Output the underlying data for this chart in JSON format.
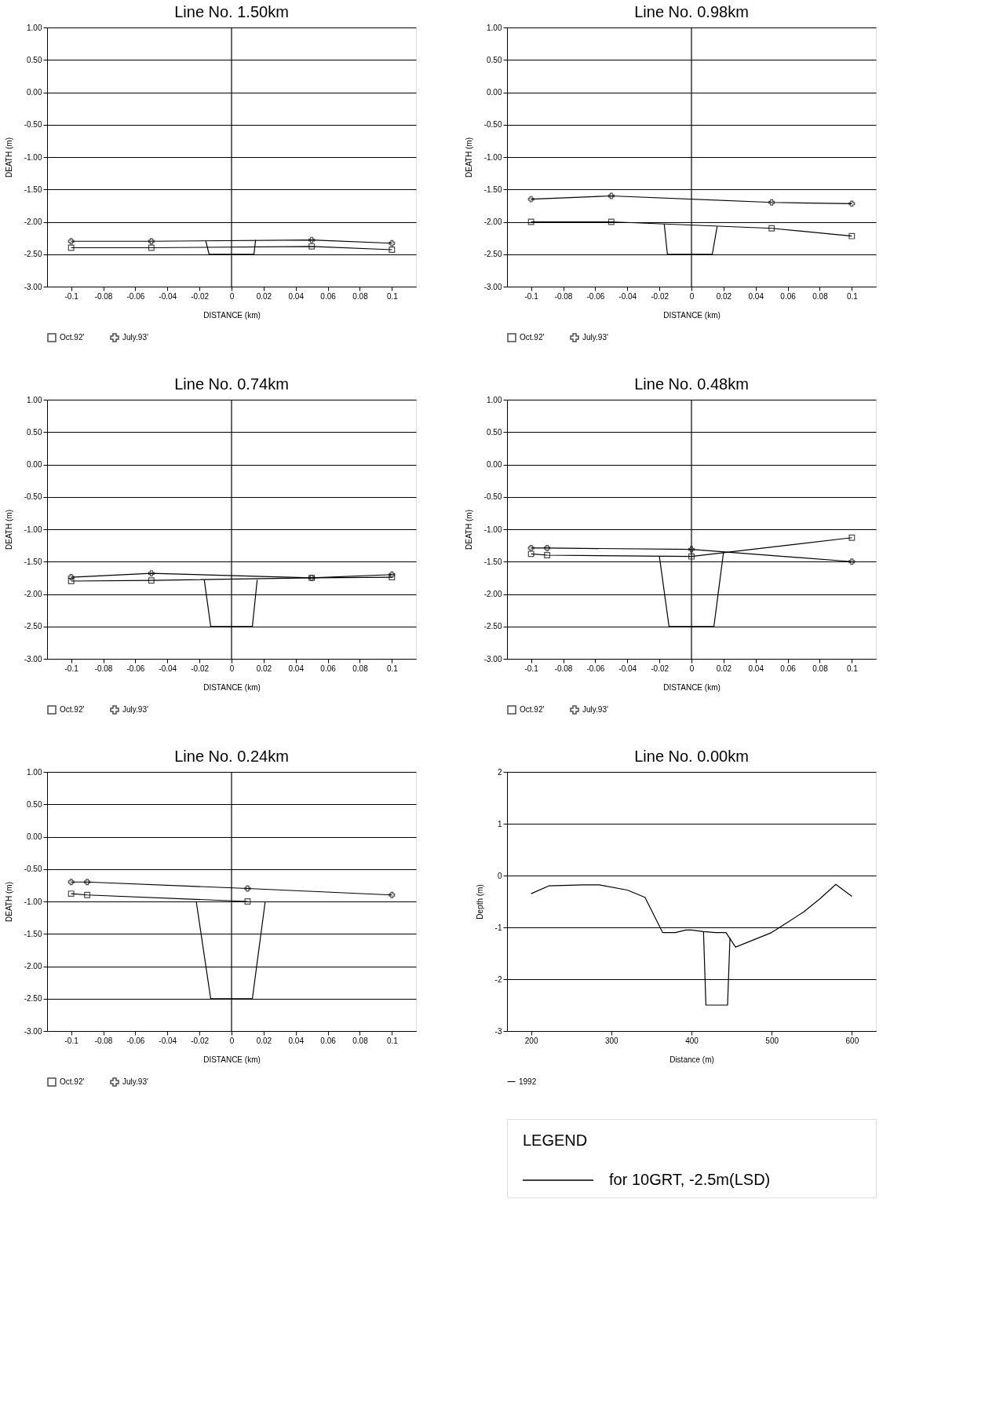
{
  "chart_data": [
    {
      "type": "line",
      "title": "Line No. 1.50km",
      "xlabel": "DISTANCE (km)",
      "ylabel": "DEATH (m)",
      "xlim": [
        -0.115,
        0.115
      ],
      "ylim": [
        -3,
        1
      ],
      "xticks": [
        -0.1,
        -0.08,
        -0.06,
        -0.04,
        -0.02,
        0,
        0.02,
        0.04,
        0.06,
        0.08,
        0.1
      ],
      "yticks": [
        {
          "value": 1,
          "label": "1.00"
        },
        {
          "value": 0.5,
          "label": "0.50"
        },
        {
          "value": 0,
          "label": "0.00"
        },
        {
          "value": -0.5,
          "label": "-0.50"
        },
        {
          "value": -1,
          "label": "-1.00"
        },
        {
          "value": -1.5,
          "label": "-1.50"
        },
        {
          "value": -2,
          "label": "-2.00"
        },
        {
          "value": -2.5,
          "label": "-2.50"
        },
        {
          "value": -3,
          "label": "-3.00"
        }
      ],
      "grid": "y",
      "legend": "bottom",
      "ref_lines": [
        {
          "axis": "x",
          "value": 0,
          "color": "#000000"
        }
      ],
      "series": [
        {
          "name": "Oct.92'",
          "color": "#000000",
          "marker": "square",
          "x": [
            -0.1,
            -0.05,
            0.05,
            0.1
          ],
          "values": [
            -2.4,
            -2.4,
            -2.38,
            -2.43
          ]
        },
        {
          "name": "July.93'",
          "color": "#000000",
          "marker": "cross",
          "x": [
            -0.1,
            -0.05,
            0.05,
            0.1
          ],
          "values": [
            -2.3,
            -2.3,
            -2.28,
            -2.33
          ]
        },
        {
          "color": "#000000",
          "marker": "none",
          "x": [
            -0.016,
            -0.014,
            0.014,
            0.015
          ],
          "values": [
            -2.3,
            -2.5,
            -2.5,
            -2.28
          ]
        }
      ]
    },
    {
      "type": "line",
      "title": "Line No. 0.98km",
      "xlabel": "DISTANCE (km)",
      "ylabel": "DEATH (m)",
      "xlim": [
        -0.115,
        0.115
      ],
      "ylim": [
        -3,
        1
      ],
      "xticks": [
        -0.1,
        -0.08,
        -0.06,
        -0.04,
        -0.02,
        0,
        0.02,
        0.04,
        0.06,
        0.08,
        0.1
      ],
      "yticks": [
        {
          "value": 1,
          "label": "1.00"
        },
        {
          "value": 0.5,
          "label": "0.50"
        },
        {
          "value": 0,
          "label": "0.00"
        },
        {
          "value": -0.5,
          "label": "-0.50"
        },
        {
          "value": -1,
          "label": "-1.00"
        },
        {
          "value": -1.5,
          "label": "-1.50"
        },
        {
          "value": -2,
          "label": "-2.00"
        },
        {
          "value": -2.5,
          "label": "-2.50"
        },
        {
          "value": -3,
          "label": "-3.00"
        }
      ],
      "grid": "y",
      "legend": "bottom",
      "ref_lines": [
        {
          "axis": "x",
          "value": 0,
          "color": "#000000"
        }
      ],
      "series": [
        {
          "name": "Oct.92'",
          "color": "#000000",
          "marker": "square",
          "x": [
            -0.1,
            -0.05,
            0.05,
            0.1
          ],
          "values": [
            -2.0,
            -2.0,
            -2.1,
            -2.22
          ]
        },
        {
          "name": "July.93'",
          "color": "#000000",
          "marker": "cross",
          "x": [
            -0.1,
            -0.05,
            0.05,
            0.1
          ],
          "values": [
            -1.65,
            -1.6,
            -1.7,
            -1.72
          ]
        },
        {
          "color": "#000000",
          "marker": "none",
          "x": [
            -0.017,
            -0.015,
            0.013,
            0.016
          ],
          "values": [
            -2.03,
            -2.5,
            -2.5,
            -2.07
          ]
        }
      ]
    },
    {
      "type": "line",
      "title": "Line No. 0.74km",
      "xlabel": "DISTANCE (km)",
      "ylabel": "DEATH (m)",
      "xlim": [
        -0.115,
        0.115
      ],
      "ylim": [
        -3,
        1
      ],
      "xticks": [
        -0.1,
        -0.08,
        -0.06,
        -0.04,
        -0.02,
        0,
        0.02,
        0.04,
        0.06,
        0.08,
        0.1
      ],
      "yticks": [
        {
          "value": 1,
          "label": "1.00"
        },
        {
          "value": 0.5,
          "label": "0.50"
        },
        {
          "value": 0,
          "label": "0.00"
        },
        {
          "value": -0.5,
          "label": "-0.50"
        },
        {
          "value": -1,
          "label": "-1.00"
        },
        {
          "value": -1.5,
          "label": "-1.50"
        },
        {
          "value": -2,
          "label": "-2.00"
        },
        {
          "value": -2.5,
          "label": "-2.50"
        },
        {
          "value": -3,
          "label": "-3.00"
        }
      ],
      "grid": "y",
      "legend": "bottom",
      "ref_lines": [
        {
          "axis": "x",
          "value": 0,
          "color": "#000000"
        }
      ],
      "series": [
        {
          "name": "Oct.92'",
          "color": "#000000",
          "marker": "square",
          "x": [
            -0.1,
            -0.05,
            0.05,
            0.1
          ],
          "values": [
            -1.8,
            -1.79,
            -1.75,
            -1.74
          ]
        },
        {
          "name": "July.93'",
          "color": "#000000",
          "marker": "cross",
          "x": [
            -0.1,
            -0.05,
            0.05,
            0.1
          ],
          "values": [
            -1.74,
            -1.68,
            -1.75,
            -1.7
          ]
        },
        {
          "color": "#000000",
          "marker": "none",
          "x": [
            -0.017,
            -0.013,
            0.013,
            0.016
          ],
          "values": [
            -1.78,
            -2.5,
            -2.5,
            -1.78
          ]
        }
      ]
    },
    {
      "type": "line",
      "title": "Line No. 0.48km",
      "xlabel": "DISTANCE (km)",
      "ylabel": "DEATH (m)",
      "xlim": [
        -0.115,
        0.115
      ],
      "ylim": [
        -3,
        1
      ],
      "xticks": [
        -0.1,
        -0.08,
        -0.06,
        -0.04,
        -0.02,
        0,
        0.02,
        0.04,
        0.06,
        0.08,
        0.1
      ],
      "yticks": [
        {
          "value": 1,
          "label": "1.00"
        },
        {
          "value": 0.5,
          "label": "0.50"
        },
        {
          "value": 0,
          "label": "0.00"
        },
        {
          "value": -0.5,
          "label": "-0.50"
        },
        {
          "value": -1,
          "label": "-1.00"
        },
        {
          "value": -1.5,
          "label": "-1.50"
        },
        {
          "value": -2,
          "label": "-2.00"
        },
        {
          "value": -2.5,
          "label": "-2.50"
        },
        {
          "value": -3,
          "label": "-3.00"
        }
      ],
      "grid": "y",
      "legend": "bottom",
      "ref_lines": [
        {
          "axis": "x",
          "value": 0,
          "color": "#000000"
        }
      ],
      "series": [
        {
          "name": "Oct.92'",
          "color": "#000000",
          "marker": "square",
          "x": [
            -0.1,
            -0.09,
            0,
            0.1
          ],
          "values": [
            -1.38,
            -1.4,
            -1.42,
            -1.13
          ]
        },
        {
          "name": "July.93'",
          "color": "#000000",
          "marker": "cross",
          "x": [
            -0.1,
            -0.09,
            0,
            0.1
          ],
          "values": [
            -1.29,
            -1.29,
            -1.31,
            -1.5
          ]
        },
        {
          "color": "#000000",
          "marker": "none",
          "x": [
            -0.02,
            -0.014,
            0.014,
            0.02
          ],
          "values": [
            -1.42,
            -2.5,
            -2.5,
            -1.35
          ]
        }
      ]
    },
    {
      "type": "line",
      "title": "Line No. 0.24km",
      "xlabel": "DISTANCE (km)",
      "ylabel": "DEATH (m)",
      "xlim": [
        -0.115,
        0.115
      ],
      "ylim": [
        -3,
        1
      ],
      "xticks": [
        -0.1,
        -0.08,
        -0.06,
        -0.04,
        -0.02,
        0,
        0.02,
        0.04,
        0.06,
        0.08,
        0.1
      ],
      "yticks": [
        {
          "value": 1,
          "label": "1.00"
        },
        {
          "value": 0.5,
          "label": "0.50"
        },
        {
          "value": 0,
          "label": "0.00"
        },
        {
          "value": -0.5,
          "label": "-0.50"
        },
        {
          "value": -1,
          "label": "-1.00"
        },
        {
          "value": -1.5,
          "label": "-1.50"
        },
        {
          "value": -2,
          "label": "-2.00"
        },
        {
          "value": -2.5,
          "label": "-2.50"
        },
        {
          "value": -3,
          "label": "-3.00"
        }
      ],
      "grid": "y",
      "legend": "bottom",
      "ref_lines": [
        {
          "axis": "x",
          "value": 0,
          "color": "#000000"
        }
      ],
      "series": [
        {
          "name": "Oct.92'",
          "color": "#000000",
          "marker": "square",
          "x": [
            -0.1,
            -0.09,
            0.01
          ],
          "values": [
            -0.88,
            -0.9,
            -1.0
          ]
        },
        {
          "name": "July.93'",
          "color": "#000000",
          "marker": "cross",
          "x": [
            -0.1,
            -0.09,
            0.01,
            0.1
          ],
          "values": [
            -0.7,
            -0.7,
            -0.8,
            -0.9
          ]
        },
        {
          "color": "#000000",
          "marker": "none",
          "x": [
            -0.022,
            -0.013,
            0.013,
            0.021
          ],
          "values": [
            -1.0,
            -2.5,
            -2.5,
            -1.0
          ]
        }
      ]
    },
    {
      "type": "line",
      "title": "Line No. 0.00km",
      "xlabel": "Distance (m)",
      "ylabel": "Depth (m)",
      "xlim": [
        170,
        630
      ],
      "ylim": [
        -3,
        2
      ],
      "xticks": [
        200,
        300,
        400,
        500,
        600
      ],
      "yticks": [
        -3,
        -2,
        -1,
        0,
        1,
        2
      ],
      "grid": "y",
      "legend": "bottom",
      "series": [
        {
          "name": "1992",
          "color": "#000000",
          "marker": "none",
          "x": [
            200,
            222,
            265,
            285,
            320,
            342,
            364,
            380,
            393,
            400,
            415,
            430,
            443,
            455,
            500,
            520,
            540,
            560,
            580,
            600
          ],
          "values": [
            -0.35,
            -0.2,
            -0.18,
            -0.18,
            -0.28,
            -0.42,
            -1.1,
            -1.1,
            -1.05,
            -1.05,
            -1.08,
            -1.1,
            -1.1,
            -1.38,
            -1.1,
            -0.9,
            -0.7,
            -0.45,
            -0.17,
            -0.4
          ]
        },
        {
          "color": "#000000",
          "marker": "none",
          "x": [
            415,
            418,
            445,
            448
          ],
          "values": [
            -1.08,
            -2.5,
            -2.5,
            -1.2
          ]
        }
      ]
    },
    {
      "type": "other",
      "title": "LEGEND",
      "annotations": [
        "for 10GRT, -2.5m(LSD)"
      ]
    }
  ]
}
